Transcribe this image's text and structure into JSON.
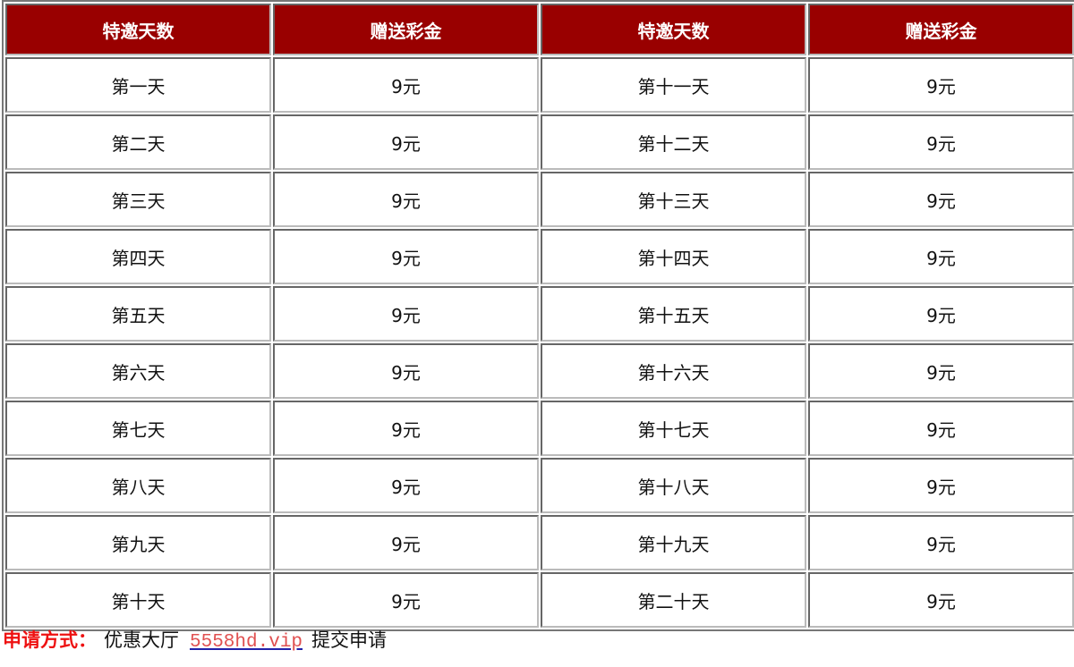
{
  "table": {
    "headers": [
      "特邀天数",
      "赠送彩金",
      "特邀天数",
      "赠送彩金"
    ],
    "rows": [
      [
        "第一天",
        "9元",
        "第十一天",
        "9元"
      ],
      [
        "第二天",
        "9元",
        "第十二天",
        "9元"
      ],
      [
        "第三天",
        "9元",
        "第十三天",
        "9元"
      ],
      [
        "第四天",
        "9元",
        "第十四天",
        "9元"
      ],
      [
        "第五天",
        "9元",
        "第十五天",
        "9元"
      ],
      [
        "第六天",
        "9元",
        "第十六天",
        "9元"
      ],
      [
        "第七天",
        "9元",
        "第十七天",
        "9元"
      ],
      [
        "第八天",
        "9元",
        "第十八天",
        "9元"
      ],
      [
        "第九天",
        "9元",
        "第十九天",
        "9元"
      ],
      [
        "第十天",
        "9元",
        "第二十天",
        "9元"
      ]
    ]
  },
  "apply": {
    "label": "申请方式：",
    "place": "优惠大厅",
    "link": "5558hd.vip",
    "action": "提交申请"
  },
  "colors": {
    "header_bg": "#990000",
    "label": "#ee1111",
    "link": "#e05050"
  }
}
